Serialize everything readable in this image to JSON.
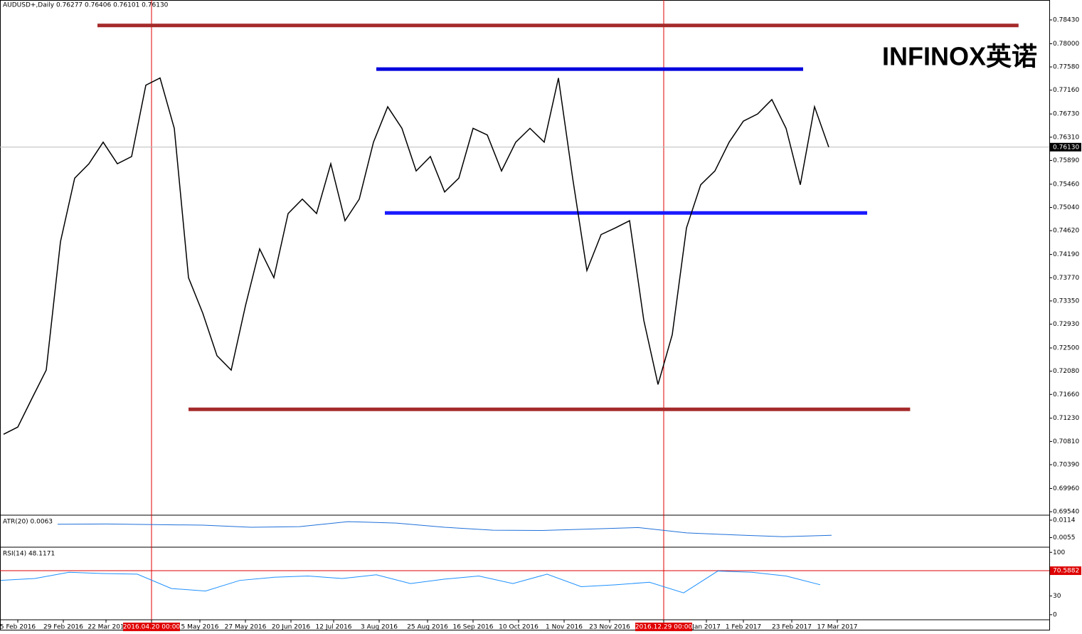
{
  "logo": "INFINOX英诺",
  "chart_data": [
    {
      "type": "line",
      "title": "AUDUSD+,Daily  0.76277 0.76406 0.76101 0.76130",
      "xlim": [
        -1.25,
        367.5
      ],
      "xticks": [
        {
          "value": 5,
          "label": "5 Feb 2016"
        },
        {
          "value": 21,
          "label": "29 Feb 2016"
        },
        {
          "value": 36,
          "label": "22 Mar 201"
        },
        {
          "value": 52,
          "label": "2016.04.20 00:00",
          "highlight": true
        },
        {
          "value": 69,
          "label": "5 May 2016"
        },
        {
          "value": 85,
          "label": "27 May 2016"
        },
        {
          "value": 101,
          "label": "20 Jun 2016"
        },
        {
          "value": 116,
          "label": "12 Jul 2016"
        },
        {
          "value": 132,
          "label": "3 Aug 2016"
        },
        {
          "value": 149,
          "label": "25 Aug 2016"
        },
        {
          "value": 165,
          "label": "16 Sep 2016"
        },
        {
          "value": 181,
          "label": "10 Oct 2016"
        },
        {
          "value": 197,
          "label": "1 Nov 2016"
        },
        {
          "value": 213,
          "label": "23 Nov 2016"
        },
        {
          "value": 232,
          "label": "2016.12.29 00:00",
          "highlight": true
        },
        {
          "value": 247,
          "label": "Jan 2017"
        },
        {
          "value": 260,
          "label": "1 Feb 2017"
        },
        {
          "value": 277,
          "label": "23 Feb 2017"
        },
        {
          "value": 293,
          "label": "17 Mar 2017"
        }
      ],
      "ylim": [
        0.6949,
        0.7879
      ],
      "yticks": [
        {
          "value": 0.7843,
          "label": "0.78430"
        },
        {
          "value": 0.78,
          "label": "0.78000"
        },
        {
          "value": 0.7758,
          "label": "0.77580"
        },
        {
          "value": 0.7716,
          "label": "0.77160"
        },
        {
          "value": 0.7673,
          "label": "0.76730"
        },
        {
          "value": 0.7631,
          "label": "0.76310"
        },
        {
          "value": 0.7589,
          "label": "0.75890"
        },
        {
          "value": 0.7546,
          "label": "0.75460"
        },
        {
          "value": 0.7504,
          "label": "0.75040"
        },
        {
          "value": 0.7462,
          "label": "0.74620"
        },
        {
          "value": 0.7419,
          "label": "0.74190"
        },
        {
          "value": 0.7377,
          "label": "0.73770"
        },
        {
          "value": 0.7335,
          "label": "0.73350"
        },
        {
          "value": 0.7293,
          "label": "0.72930"
        },
        {
          "value": 0.725,
          "label": "0.72500"
        },
        {
          "value": 0.7208,
          "label": "0.72080"
        },
        {
          "value": 0.7166,
          "label": "0.71660"
        },
        {
          "value": 0.7123,
          "label": "0.71230"
        },
        {
          "value": 0.7081,
          "label": "0.70810"
        },
        {
          "value": 0.7039,
          "label": "0.70390"
        },
        {
          "value": 0.6996,
          "label": "0.69960"
        },
        {
          "value": 0.6954,
          "label": "0.69540"
        }
      ],
      "last_price": {
        "value": 0.7613,
        "label": "0.76130"
      },
      "levels": [
        {
          "value": 0.7833,
          "x": [
            33,
            356.7
          ],
          "color": "#a52a2a"
        },
        {
          "value": 0.7139,
          "x": [
            65,
            318.6
          ],
          "color": "#a52a2a"
        },
        {
          "value": 0.7754,
          "x": [
            131,
            281
          ],
          "color": "#0000dd"
        },
        {
          "value": 0.7494,
          "x": [
            134,
            303.5
          ],
          "color": "#1a1aff"
        }
      ],
      "series": [
        {
          "name": "AUDUSD+",
          "color": "#000000",
          "x": [
            0,
            5,
            10,
            15,
            20,
            25,
            30,
            35,
            40,
            45,
            50,
            55,
            60,
            65,
            70,
            75,
            80,
            85,
            90,
            95,
            100,
            105,
            110,
            115,
            120,
            125,
            130,
            135,
            140,
            145,
            150,
            155,
            160,
            165,
            170,
            175,
            180,
            185,
            190,
            195,
            200,
            205,
            210,
            215,
            220,
            225,
            230,
            235,
            240,
            245,
            250,
            255,
            260,
            265,
            270,
            275,
            280,
            285,
            290
          ],
          "values": [
            0.7094,
            0.7107,
            0.7159,
            0.721,
            0.7442,
            0.7557,
            0.7583,
            0.7622,
            0.7583,
            0.7596,
            0.7725,
            0.7738,
            0.7647,
            0.7377,
            0.7313,
            0.7236,
            0.721,
            0.7326,
            0.7429,
            0.7377,
            0.7493,
            0.7519,
            0.7493,
            0.7583,
            0.748,
            0.7519,
            0.7622,
            0.7686,
            0.7647,
            0.757,
            0.7596,
            0.7532,
            0.7557,
            0.7647,
            0.7635,
            0.757,
            0.7622,
            0.7647,
            0.7622,
            0.7738,
            0.7557,
            0.739,
            0.7455,
            0.7467,
            0.748,
            0.73,
            0.7184,
            0.7274,
            0.7467,
            0.7545,
            0.757,
            0.7622,
            0.766,
            0.7673,
            0.7699,
            0.7647,
            0.7545,
            0.7686,
            0.7613
          ]
        }
      ]
    },
    {
      "type": "line",
      "title": "ATR(20) 0.0063",
      "xlim": [
        -1.25,
        367.5
      ],
      "ylim": [
        0.0025,
        0.0126
      ],
      "yticks": [
        0.0114,
        0.0055
      ],
      "series": [
        {
          "name": "ATR",
          "color": "#1e6fd9",
          "x": [
            19,
            36,
            53,
            70,
            87,
            104,
            121,
            138,
            155,
            172,
            189,
            206,
            223,
            240,
            257,
            274,
            291
          ],
          "values": [
            0.01,
            0.0101,
            0.0099,
            0.0097,
            0.009,
            0.0092,
            0.0109,
            0.0104,
            0.009,
            0.008,
            0.0079,
            0.0084,
            0.0089,
            0.0071,
            0.0064,
            0.0058,
            0.0063
          ]
        }
      ]
    },
    {
      "type": "line",
      "title": "RSI(14) 48.1171",
      "xlim": [
        -1.25,
        367.5
      ],
      "ylim": [
        -7,
        106
      ],
      "yticks": [
        100,
        30,
        0
      ],
      "level": {
        "value": 70.5882,
        "color": "#dd0000"
      },
      "series": [
        {
          "name": "RSI",
          "color": "#1e90ff",
          "x": [
            -1,
            11,
            23,
            35,
            47,
            59,
            71,
            83,
            95,
            107,
            119,
            131,
            143,
            155,
            167,
            179,
            191,
            203,
            215,
            227,
            239,
            251,
            263,
            275,
            287
          ],
          "values": [
            55,
            58,
            68,
            66,
            65,
            42,
            38,
            55,
            60,
            62,
            58,
            64,
            50,
            57,
            62,
            50,
            65,
            45,
            48,
            52,
            35,
            70,
            68,
            62,
            48
          ]
        }
      ]
    }
  ]
}
